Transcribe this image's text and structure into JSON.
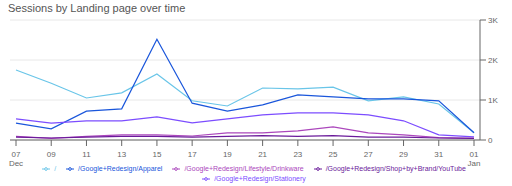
{
  "chart_data": {
    "type": "line",
    "title": "Sessions by Landing page over time",
    "categories": [
      "07\nDec",
      "09",
      "11",
      "13",
      "15",
      "17",
      "19",
      "21",
      "23",
      "25",
      "27",
      "29",
      "31",
      "01\nJan"
    ],
    "series": [
      {
        "name": "/",
        "color": "#69c5e8",
        "values": [
          1750,
          1420,
          1050,
          1180,
          1650,
          980,
          850,
          1300,
          1280,
          1320,
          980,
          1080,
          900,
          180
        ]
      },
      {
        "name": "/Google+Redesign/Apparel",
        "color": "#1a56db",
        "values": [
          420,
          280,
          720,
          780,
          2520,
          920,
          720,
          880,
          1130,
          1080,
          1030,
          1030,
          980,
          180
        ]
      },
      {
        "name": "/Google+Redesign/Stationery",
        "color": "#7c4dff",
        "values": [
          530,
          420,
          480,
          480,
          580,
          430,
          530,
          630,
          680,
          680,
          630,
          480,
          130,
          80
        ]
      },
      {
        "name": "/Google+Redesign/Lifestyle/Drinkware",
        "color": "#ab47bc",
        "values": [
          90,
          40,
          90,
          130,
          130,
          100,
          180,
          180,
          230,
          330,
          180,
          130,
          60,
          40
        ]
      },
      {
        "name": "/Google+Redesign/Shop+by+Brand/YouTube",
        "color": "#6a1a9a",
        "values": [
          70,
          50,
          70,
          90,
          90,
          70,
          90,
          110,
          90,
          110,
          70,
          70,
          50,
          40
        ]
      }
    ],
    "ylim": [
      0,
      3000
    ],
    "yticks": [
      0,
      {
        "value": 1000,
        "label": "1K"
      },
      {
        "value": 2000,
        "label": "2K"
      },
      {
        "value": 3000,
        "label": "3K"
      }
    ],
    "grid": true,
    "legend": "bottom"
  }
}
